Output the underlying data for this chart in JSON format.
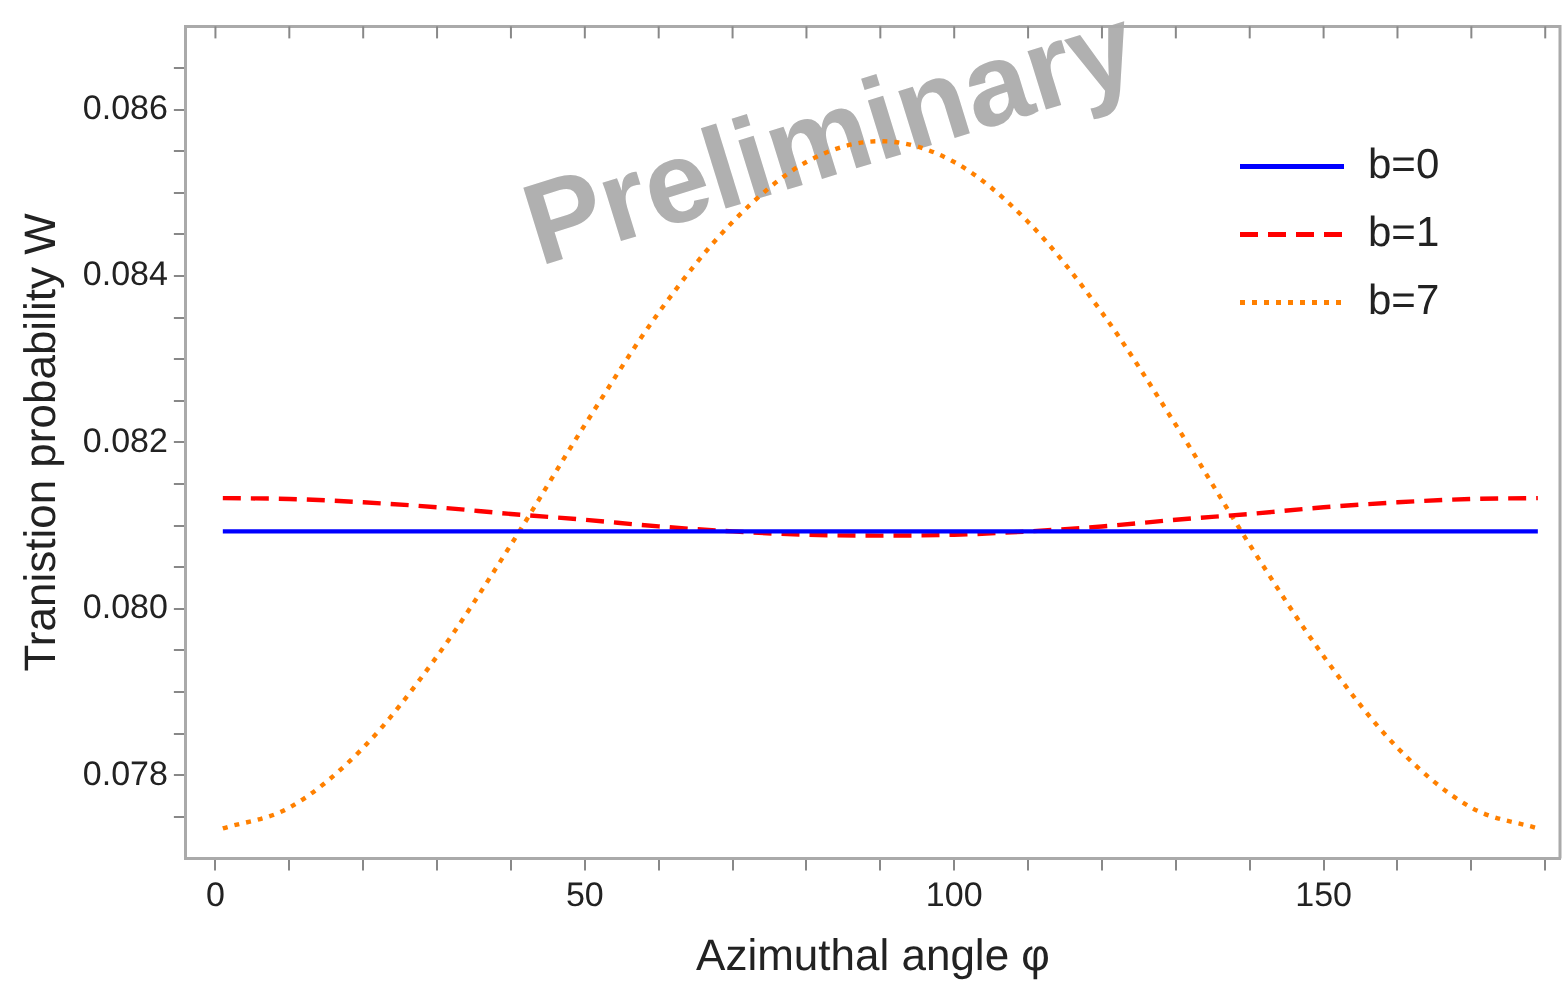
{
  "chart_data": {
    "type": "line",
    "xlabel": "Azimuthal angle φ",
    "ylabel": "Tranistion probability W",
    "annotations": [
      "Preliminary"
    ],
    "x": [
      1,
      10,
      20,
      30,
      40,
      50,
      60,
      70,
      80,
      90,
      100,
      110,
      120,
      130,
      140,
      150,
      160,
      170,
      179
    ],
    "series": [
      {
        "name": "b=0",
        "color": "#0000ff",
        "line_style": "solid",
        "values": [
          0.08093,
          0.08093,
          0.08093,
          0.08093,
          0.08093,
          0.08093,
          0.08093,
          0.08093,
          0.08093,
          0.08093,
          0.08093,
          0.08093,
          0.08093,
          0.08093,
          0.08093,
          0.08093,
          0.08093,
          0.08093,
          0.08093
        ]
      },
      {
        "name": "b=1",
        "color": "#ff0000",
        "line_style": "dashed",
        "values": [
          0.08133,
          0.08132,
          0.08128,
          0.08122,
          0.08114,
          0.08107,
          0.08099,
          0.08093,
          0.08089,
          0.08088,
          0.08089,
          0.08093,
          0.08099,
          0.08107,
          0.08114,
          0.08122,
          0.08128,
          0.08132,
          0.08133
        ]
      },
      {
        "name": "b=7",
        "color": "#ff8000",
        "line_style": "dotted",
        "values": [
          0.07736,
          0.07761,
          0.07833,
          0.07943,
          0.08077,
          0.08221,
          0.08356,
          0.08465,
          0.08537,
          0.08562,
          0.08537,
          0.08465,
          0.08356,
          0.08221,
          0.08077,
          0.07943,
          0.07833,
          0.07761,
          0.07736
        ]
      }
    ],
    "xlim": [
      -4,
      182
    ],
    "xticks": [
      0,
      {
        "value": 10,
        "label": null
      },
      {
        "value": 20,
        "label": null
      },
      {
        "value": 30,
        "label": null
      },
      {
        "value": 40,
        "label": null
      },
      50,
      {
        "value": 60,
        "label": null
      },
      {
        "value": 70,
        "label": null
      },
      {
        "value": 80,
        "label": null
      },
      {
        "value": 90,
        "label": null
      },
      100,
      {
        "value": 110,
        "label": null
      },
      {
        "value": 120,
        "label": null
      },
      {
        "value": 130,
        "label": null
      },
      {
        "value": 140,
        "label": null
      },
      150,
      {
        "value": 160,
        "label": null
      },
      {
        "value": 170,
        "label": null
      },
      {
        "value": 180,
        "label": null
      }
    ],
    "ylim": [
      0.077,
      0.087
    ],
    "yticks": [
      {
        "value": 0.0775,
        "label": null
      },
      {
        "value": 0.078,
        "label": "0.078"
      },
      {
        "value": 0.0785,
        "label": null
      },
      {
        "value": 0.079,
        "label": null
      },
      {
        "value": 0.0795,
        "label": null
      },
      {
        "value": 0.08,
        "label": "0.080"
      },
      {
        "value": 0.0805,
        "label": null
      },
      {
        "value": 0.081,
        "label": null
      },
      {
        "value": 0.0815,
        "label": null
      },
      {
        "value": 0.082,
        "label": "0.082"
      },
      {
        "value": 0.0825,
        "label": null
      },
      {
        "value": 0.083,
        "label": null
      },
      {
        "value": 0.0835,
        "label": null
      },
      {
        "value": 0.084,
        "label": "0.084"
      },
      {
        "value": 0.0845,
        "label": null
      },
      {
        "value": 0.085,
        "label": null
      },
      {
        "value": 0.0855,
        "label": null
      },
      {
        "value": 0.086,
        "label": "0.086"
      },
      {
        "value": 0.0865,
        "label": null
      }
    ],
    "legend": "top right",
    "grid": false,
    "marker": "none"
  }
}
